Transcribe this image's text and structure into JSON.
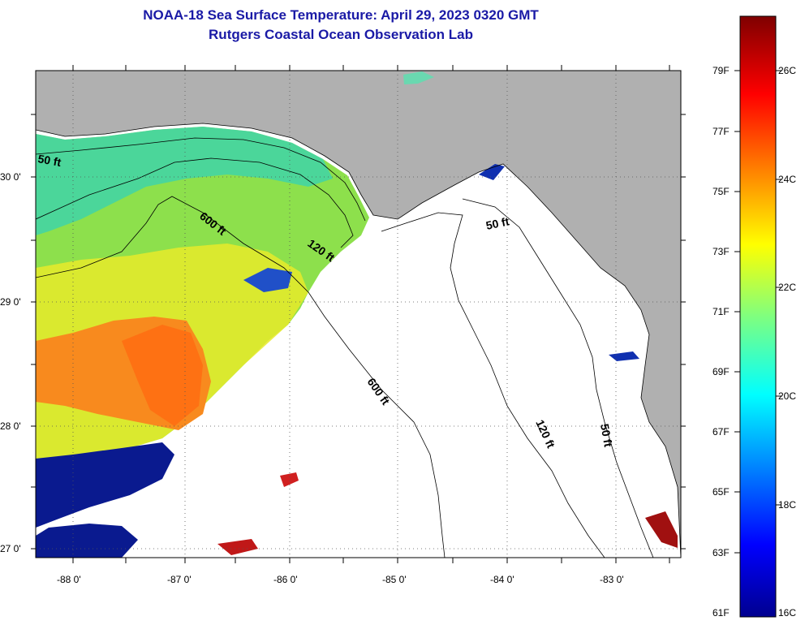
{
  "header": {
    "title": "NOAA-18 Sea Surface Temperature:  April 29, 2023 0320 GMT",
    "subtitle": "Rutgers Coastal Ocean Observation Lab"
  },
  "map": {
    "lat_labels": [
      "30 0'",
      "29 0'",
      "28 0'",
      "27 0'"
    ],
    "lon_labels": [
      "-88 0'",
      "-87 0'",
      "-86 0'",
      "-85 0'",
      "-84 0'",
      "-83 0'"
    ],
    "lat_range": [
      26.97,
      30.85
    ],
    "lon_range": [
      -88.3,
      -82.55
    ],
    "contours": [
      "50 ft",
      "120 ft",
      "600 ft",
      "50 ft",
      "120 ft",
      "600 ft",
      "50 ft"
    ],
    "land_color": "#b0b0b0",
    "cloud_mask_color": "#ffffff"
  },
  "legend": {
    "fahrenheit": [
      "79F",
      "77F",
      "75F",
      "73F",
      "71F",
      "69F",
      "67F",
      "65F",
      "63F",
      "61F"
    ],
    "celsius": [
      "26C",
      "24C",
      "22C",
      "20C",
      "18C",
      "16C"
    ],
    "range_c": [
      16,
      27
    ]
  }
}
